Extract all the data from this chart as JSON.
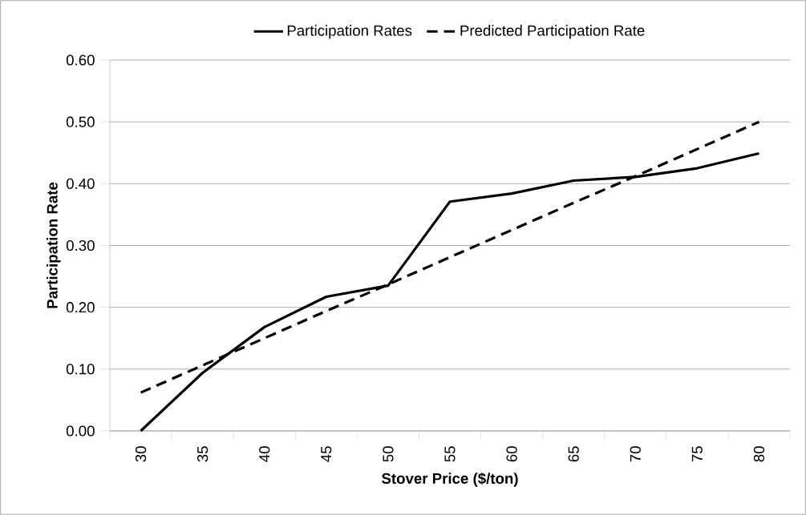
{
  "chart_data": {
    "type": "line",
    "xlabel": "Stover Price ($/ton)",
    "ylabel": "Participation Rate",
    "categories": [
      "30",
      "35",
      "40",
      "45",
      "50",
      "55",
      "60",
      "65",
      "70",
      "75",
      "80"
    ],
    "series": [
      {
        "name": "Participation Rates",
        "color": "#000000",
        "line_style": "solid",
        "values": [
          0.0,
          0.094,
          0.168,
          0.217,
          0.235,
          0.371,
          0.384,
          0.405,
          0.411,
          0.425,
          0.449
        ]
      },
      {
        "name": "Predicted Participation Rate",
        "color": "#000000",
        "line_style": "dashed",
        "values": [
          0.062,
          0.106,
          0.15,
          0.194,
          0.237,
          0.281,
          0.325,
          0.369,
          0.412,
          0.456,
          0.5
        ]
      }
    ],
    "ylim": [
      0,
      0.6
    ],
    "yticks": [
      {
        "value": 0,
        "label": "0.00"
      },
      {
        "value": 0.1,
        "label": "0.10"
      },
      {
        "value": 0.2,
        "label": "0.20"
      },
      {
        "value": 0.3,
        "label": "0.30"
      },
      {
        "value": 0.4,
        "label": "0.40"
      },
      {
        "value": 0.5,
        "label": "0.50"
      },
      {
        "value": 0.6,
        "label": "0.60"
      }
    ],
    "grid": "y",
    "legend": "top",
    "marker": "none"
  }
}
